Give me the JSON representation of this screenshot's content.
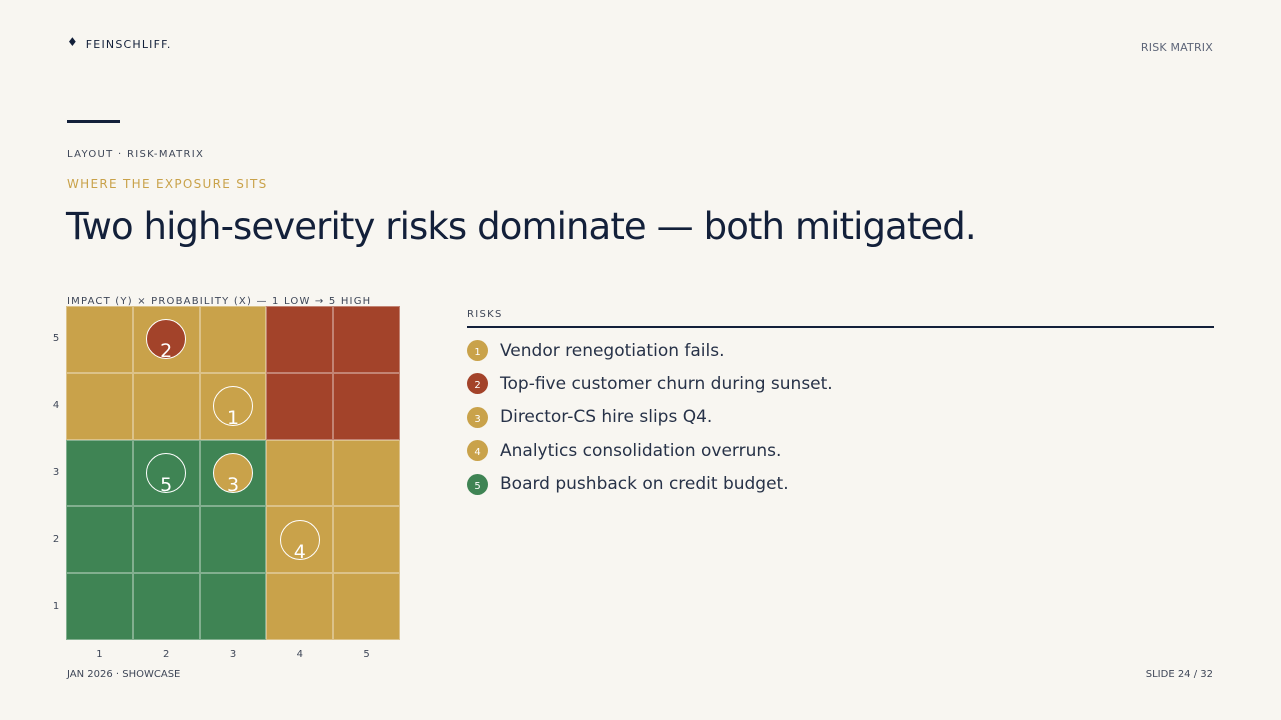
{
  "header": {
    "brand_mark": "♦",
    "brand_name": "FEINSCHLIFF.",
    "section": "RISK MATRIX"
  },
  "slide": {
    "layout_tag": "LAYOUT · RISK-MATRIX",
    "eyebrow": "WHERE THE EXPOSURE SITS",
    "title": "Two high-severity risks dominate — both mitigated."
  },
  "matrix": {
    "caption": "IMPACT (Y) × PROBABILITY (X) — 1 LOW → 5 HIGH",
    "x_ticks": [
      "1",
      "2",
      "3",
      "4",
      "5"
    ],
    "y_ticks": [
      "5",
      "4",
      "3",
      "2",
      "1"
    ],
    "colors": {
      "low": "#3f8454",
      "medium": "#c9a24a",
      "high": "#a3432a"
    },
    "zones": [
      [
        "medium",
        "medium",
        "medium",
        "high",
        "high"
      ],
      [
        "medium",
        "medium",
        "medium",
        "high",
        "high"
      ],
      [
        "low",
        "low",
        "low",
        "medium",
        "medium"
      ],
      [
        "low",
        "low",
        "low",
        "medium",
        "medium"
      ],
      [
        "low",
        "low",
        "low",
        "medium",
        "medium"
      ]
    ],
    "risks": [
      {
        "id": "1",
        "probability": 3,
        "impact": 4,
        "filled": false
      },
      {
        "id": "2",
        "probability": 2,
        "impact": 5,
        "filled": true,
        "color": "#a3432a"
      },
      {
        "id": "3",
        "probability": 3,
        "impact": 3,
        "filled": true,
        "color": "#c9a24a"
      },
      {
        "id": "4",
        "probability": 4,
        "impact": 2,
        "filled": false
      },
      {
        "id": "5",
        "probability": 2,
        "impact": 3,
        "filled": false
      }
    ]
  },
  "legend": {
    "heading": "RISKS",
    "items": [
      {
        "num": "1",
        "label": "Vendor renegotiation fails.",
        "color": "#c9a24a"
      },
      {
        "num": "2",
        "label": "Top-five customer churn during sunset.",
        "color": "#a3432a"
      },
      {
        "num": "3",
        "label": "Director-CS hire slips Q4.",
        "color": "#c9a24a"
      },
      {
        "num": "4",
        "label": "Analytics consolidation overruns.",
        "color": "#c9a24a"
      },
      {
        "num": "5",
        "label": "Board pushback on credit budget.",
        "color": "#3f8454"
      }
    ]
  },
  "footer": {
    "left": "JAN 2026 · SHOWCASE",
    "right": "SLIDE 24 / 32"
  }
}
